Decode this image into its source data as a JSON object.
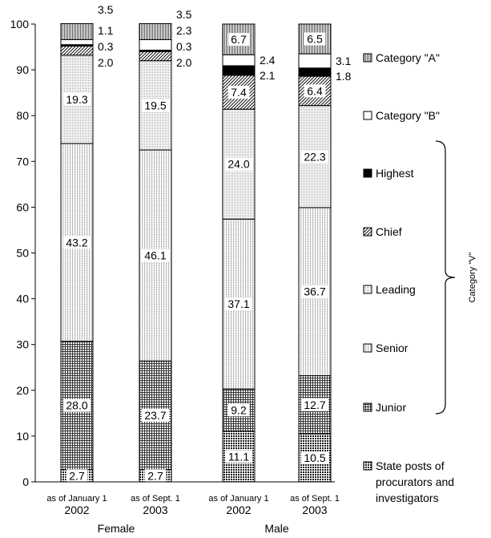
{
  "chart_data": {
    "type": "bar",
    "stacked": true,
    "ylim": [
      0,
      100
    ],
    "yticks": [
      0,
      10,
      20,
      30,
      40,
      50,
      60,
      70,
      80,
      90,
      100
    ],
    "categories": [
      {
        "date_label": "as of January 1",
        "year": "2002"
      },
      {
        "date_label": "as of Sept. 1",
        "year": "2003"
      },
      {
        "date_label": "as of January 1",
        "year": "2002"
      },
      {
        "date_label": "as of Sept. 1",
        "year": "2003"
      }
    ],
    "groups": [
      {
        "label": "Female",
        "bars": [
          0,
          1
        ]
      },
      {
        "label": "Male",
        "bars": [
          2,
          3
        ]
      }
    ],
    "series": [
      {
        "name": "State posts of procurators and investigators",
        "pattern": "crosshatch-dense",
        "values": [
          2.7,
          2.7,
          11.1,
          10.5
        ]
      },
      {
        "name": "Junior",
        "pattern": "grid",
        "values": [
          28.0,
          23.7,
          9.2,
          12.7
        ]
      },
      {
        "name": "Senior",
        "pattern": "vertical-lines",
        "values": [
          43.2,
          46.1,
          37.1,
          36.7
        ]
      },
      {
        "name": "Leading",
        "pattern": "dots",
        "values": [
          19.3,
          19.5,
          24.0,
          22.3
        ]
      },
      {
        "name": "Chief",
        "pattern": "diagonal",
        "values": [
          2.0,
          2.0,
          7.4,
          6.4
        ]
      },
      {
        "name": "Highest",
        "pattern": "solid-black",
        "values": [
          0.3,
          0.3,
          2.1,
          1.8
        ]
      },
      {
        "name": "Category \"B\"",
        "pattern": "white",
        "values": [
          1.1,
          2.3,
          2.4,
          3.1
        ]
      },
      {
        "name": "Category \"A\"",
        "pattern": "vertical-lines-dense",
        "values": [
          3.5,
          3.5,
          6.7,
          6.5
        ]
      }
    ],
    "legend_order": [
      "Category \"A\"",
      "Category \"B\"",
      "Highest",
      "Chief",
      "Leading",
      "Senior",
      "Junior",
      "State posts of procurators and investigators"
    ],
    "bracket_label": "Category \"V\"",
    "bracket_series": [
      "Highest",
      "Chief",
      "Leading",
      "Senior",
      "Junior"
    ]
  }
}
